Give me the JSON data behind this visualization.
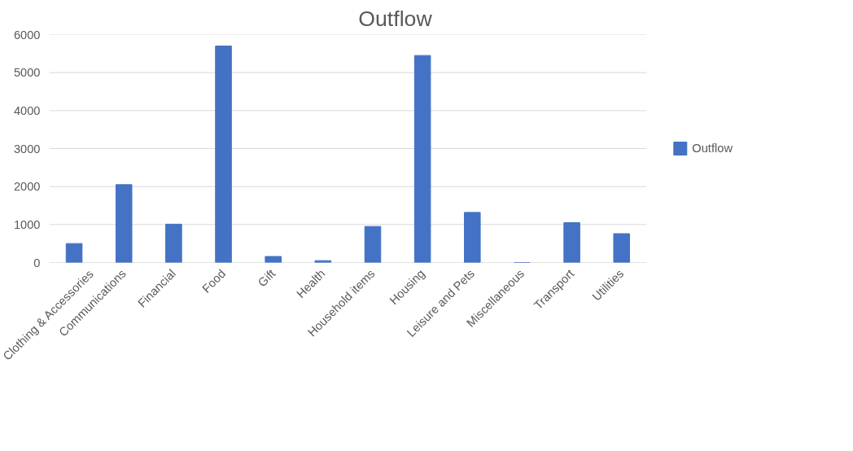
{
  "chart_data": {
    "type": "bar",
    "title": "Outflow",
    "categories": [
      "Clothing & Accessories",
      "Communications",
      "Financial",
      "Food",
      "Gift",
      "Health",
      "Household items",
      "Housing",
      "Leisure and Pets",
      "Miscellaneous",
      "Transport",
      "Utilities"
    ],
    "series": [
      {
        "name": "Outflow",
        "color": "#4472c4",
        "values": [
          500,
          2050,
          1010,
          5700,
          160,
          50,
          950,
          5450,
          1320,
          0,
          1050,
          760
        ]
      }
    ],
    "ylim": [
      0,
      6000
    ],
    "yticks": [
      0,
      1000,
      2000,
      3000,
      4000,
      5000,
      6000
    ],
    "grid": "y",
    "legend": "right"
  }
}
